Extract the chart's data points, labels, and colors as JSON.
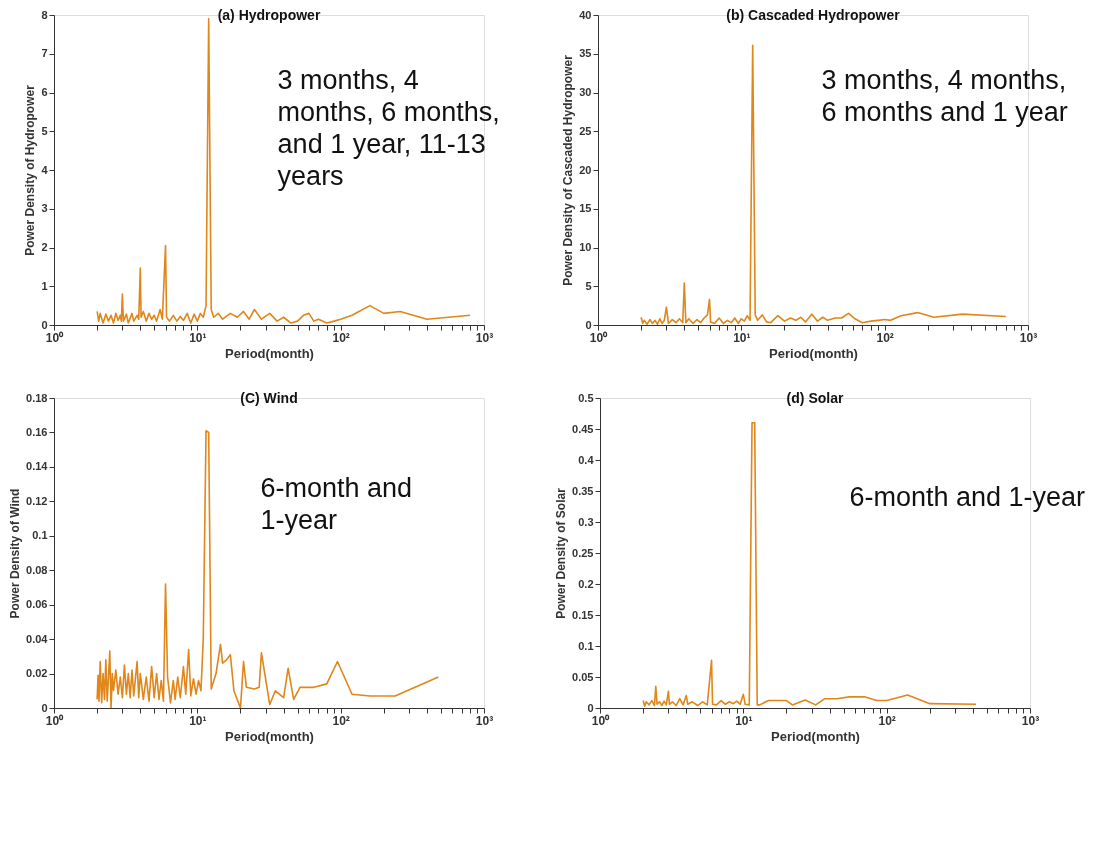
{
  "chart_data": [
    {
      "type": "line",
      "title": "(a) Hydropower",
      "xlabel": "Period(month)",
      "ylabel": "Power Density of Hydropower",
      "log": "x",
      "grid": false,
      "annotations": [
        "3 months, 4 months, 6 months, and 1 year, 11-13 years"
      ],
      "xlim": [
        1,
        1000
      ],
      "xticks": [
        {
          "value": 1,
          "label": "10⁰"
        },
        {
          "value": 2,
          "label": null
        },
        {
          "value": 3,
          "label": null
        },
        {
          "value": 4,
          "label": null
        },
        {
          "value": 5,
          "label": null
        },
        {
          "value": 6,
          "label": null
        },
        {
          "value": 7,
          "label": null
        },
        {
          "value": 8,
          "label": null
        },
        {
          "value": 9,
          "label": null
        },
        {
          "value": 10,
          "label": "10¹"
        },
        {
          "value": 20,
          "label": null
        },
        {
          "value": 30,
          "label": null
        },
        {
          "value": 40,
          "label": null
        },
        {
          "value": 50,
          "label": null
        },
        {
          "value": 60,
          "label": null
        },
        {
          "value": 70,
          "label": null
        },
        {
          "value": 80,
          "label": null
        },
        {
          "value": 90,
          "label": null
        },
        {
          "value": 100,
          "label": "10²"
        },
        {
          "value": 200,
          "label": null
        },
        {
          "value": 300,
          "label": null
        },
        {
          "value": 400,
          "label": null
        },
        {
          "value": 500,
          "label": null
        },
        {
          "value": 600,
          "label": null
        },
        {
          "value": 700,
          "label": null
        },
        {
          "value": 800,
          "label": null
        },
        {
          "value": 900,
          "label": null
        },
        {
          "value": 1000,
          "label": "10³"
        }
      ],
      "ylim": [
        0,
        8
      ],
      "yticks": [
        0,
        1,
        2,
        3,
        4,
        5,
        6,
        7,
        8
      ],
      "x": [
        2,
        2.05,
        2.1,
        2.2,
        2.3,
        2.4,
        2.5,
        2.6,
        2.7,
        2.8,
        2.9,
        2.95,
        3,
        3.05,
        3.2,
        3.3,
        3.5,
        3.6,
        3.8,
        3.9,
        4,
        4.05,
        4.2,
        4.4,
        4.6,
        4.8,
        5,
        5.2,
        5.5,
        5.7,
        6,
        6.1,
        6.4,
        6.8,
        7.2,
        7.6,
        8,
        8.5,
        9,
        9.5,
        10,
        10.5,
        11,
        11.5,
        12,
        12.5,
        13,
        14,
        15,
        17,
        19,
        21,
        23,
        25,
        28,
        32,
        36,
        40,
        45,
        50,
        55,
        60,
        65,
        70,
        80,
        90,
        100,
        120,
        160,
        200,
        260,
        400,
        800
      ],
      "series": [
        {
          "color": "#e0861a",
          "values": [
            0.35,
            0.1,
            0.3,
            0.05,
            0.28,
            0.1,
            0.25,
            0.05,
            0.3,
            0.12,
            0.25,
            0.1,
            0.8,
            0.1,
            0.28,
            0.05,
            0.3,
            0.1,
            0.25,
            0.15,
            1.47,
            0.2,
            0.35,
            0.1,
            0.3,
            0.15,
            0.25,
            0.1,
            0.4,
            0.15,
            2.05,
            0.2,
            0.1,
            0.25,
            0.1,
            0.22,
            0.12,
            0.3,
            0.05,
            0.28,
            0.1,
            0.3,
            0.2,
            0.5,
            7.9,
            0.4,
            0.2,
            0.3,
            0.15,
            0.3,
            0.2,
            0.35,
            0.15,
            0.4,
            0.15,
            0.3,
            0.1,
            0.2,
            0.05,
            0.1,
            0.25,
            0.3,
            0.1,
            0.15,
            0.05,
            0.1,
            0.15,
            0.25,
            0.5,
            0.3,
            0.35,
            0.15,
            0.25
          ]
        }
      ]
    },
    {
      "type": "line",
      "title": "(b) Cascaded Hydropower",
      "xlabel": "Period(month)",
      "ylabel": "Power Density of Cascaded Hydropower",
      "log": "x",
      "grid": false,
      "annotations": [
        "3 months, 4 months, 6 months and 1 year"
      ],
      "xlim": [
        1,
        1000
      ],
      "xticks": [
        {
          "value": 1,
          "label": "10⁰"
        },
        {
          "value": 2,
          "label": null
        },
        {
          "value": 3,
          "label": null
        },
        {
          "value": 4,
          "label": null
        },
        {
          "value": 5,
          "label": null
        },
        {
          "value": 6,
          "label": null
        },
        {
          "value": 7,
          "label": null
        },
        {
          "value": 8,
          "label": null
        },
        {
          "value": 9,
          "label": null
        },
        {
          "value": 10,
          "label": "10¹"
        },
        {
          "value": 20,
          "label": null
        },
        {
          "value": 30,
          "label": null
        },
        {
          "value": 40,
          "label": null
        },
        {
          "value": 50,
          "label": null
        },
        {
          "value": 60,
          "label": null
        },
        {
          "value": 70,
          "label": null
        },
        {
          "value": 80,
          "label": null
        },
        {
          "value": 90,
          "label": null
        },
        {
          "value": 100,
          "label": "10²"
        },
        {
          "value": 200,
          "label": null
        },
        {
          "value": 300,
          "label": null
        },
        {
          "value": 400,
          "label": null
        },
        {
          "value": 500,
          "label": null
        },
        {
          "value": 600,
          "label": null
        },
        {
          "value": 700,
          "label": null
        },
        {
          "value": 800,
          "label": null
        },
        {
          "value": 900,
          "label": null
        },
        {
          "value": 1000,
          "label": "10³"
        }
      ],
      "ylim": [
        0,
        40
      ],
      "yticks": [
        0,
        5,
        10,
        15,
        20,
        25,
        30,
        35,
        40
      ],
      "x": [
        2,
        2.05,
        2.1,
        2.2,
        2.3,
        2.4,
        2.5,
        2.6,
        2.7,
        2.8,
        2.9,
        3,
        3.1,
        3.3,
        3.5,
        3.7,
        3.9,
        4,
        4.1,
        4.3,
        4.6,
        4.9,
        5.2,
        5.5,
        5.8,
        6,
        6.1,
        6.5,
        7,
        7.5,
        8,
        8.5,
        9,
        9.5,
        10,
        10.5,
        11,
        11.5,
        12,
        12.5,
        13,
        14,
        15,
        16,
        18,
        20,
        22,
        24,
        26,
        28,
        31,
        34,
        37,
        40,
        45,
        50,
        56,
        62,
        70,
        80,
        90,
        100,
        110,
        130,
        170,
        220,
        350,
        700
      ],
      "series": [
        {
          "color": "#e0861a",
          "values": [
            1,
            0.2,
            0.6,
            0.1,
            0.7,
            0.2,
            0.6,
            0.1,
            0.8,
            0.2,
            0.6,
            2.3,
            0.2,
            0.7,
            0.3,
            0.8,
            0.3,
            5.4,
            0.3,
            0.8,
            0.2,
            0.7,
            0.3,
            0.9,
            1.3,
            3.3,
            0.4,
            0.2,
            0.9,
            0.2,
            0.6,
            0.3,
            0.9,
            0.2,
            0.8,
            0.5,
            1.2,
            0.6,
            36.1,
            1.3,
            0.6,
            1.3,
            0.4,
            0.3,
            1.2,
            0.5,
            0.9,
            0.6,
            1.0,
            0.4,
            1.4,
            0.5,
            1.0,
            0.6,
            0.9,
            0.9,
            1.5,
            0.8,
            0.3,
            0.5,
            0.6,
            0.7,
            0.6,
            1.2,
            1.6,
            1.0,
            1.4,
            1.1
          ]
        }
      ]
    },
    {
      "type": "line",
      "title": "(C) Wind",
      "xlabel": "Period(month)",
      "ylabel": "Power Density of Wind",
      "log": "x",
      "grid": false,
      "annotations": [
        "6-month and 1-year"
      ],
      "xlim": [
        1,
        1000
      ],
      "xticks": [
        {
          "value": 1,
          "label": "10⁰"
        },
        {
          "value": 2,
          "label": null
        },
        {
          "value": 3,
          "label": null
        },
        {
          "value": 4,
          "label": null
        },
        {
          "value": 5,
          "label": null
        },
        {
          "value": 6,
          "label": null
        },
        {
          "value": 7,
          "label": null
        },
        {
          "value": 8,
          "label": null
        },
        {
          "value": 9,
          "label": null
        },
        {
          "value": 10,
          "label": "10¹"
        },
        {
          "value": 20,
          "label": null
        },
        {
          "value": 30,
          "label": null
        },
        {
          "value": 40,
          "label": null
        },
        {
          "value": 50,
          "label": null
        },
        {
          "value": 60,
          "label": null
        },
        {
          "value": 70,
          "label": null
        },
        {
          "value": 80,
          "label": null
        },
        {
          "value": 90,
          "label": null
        },
        {
          "value": 100,
          "label": "10²"
        },
        {
          "value": 200,
          "label": null
        },
        {
          "value": 300,
          "label": null
        },
        {
          "value": 400,
          "label": null
        },
        {
          "value": 500,
          "label": null
        },
        {
          "value": 600,
          "label": null
        },
        {
          "value": 700,
          "label": null
        },
        {
          "value": 800,
          "label": null
        },
        {
          "value": 900,
          "label": null
        },
        {
          "value": 1000,
          "label": "10³"
        }
      ],
      "ylim": [
        0,
        0.18
      ],
      "yticks": [
        0,
        0.02,
        0.04,
        0.06,
        0.08,
        0.1,
        0.12,
        0.14,
        0.16,
        0.18
      ],
      "x": [
        2,
        2.03,
        2.06,
        2.1,
        2.15,
        2.2,
        2.25,
        2.3,
        2.35,
        2.4,
        2.45,
        2.5,
        2.55,
        2.6,
        2.7,
        2.8,
        2.9,
        3,
        3.1,
        3.2,
        3.3,
        3.4,
        3.5,
        3.6,
        3.8,
        3.9,
        4,
        4.2,
        4.4,
        4.6,
        4.8,
        5,
        5.2,
        5.4,
        5.6,
        5.8,
        6,
        6.2,
        6.5,
        6.8,
        7,
        7.3,
        7.6,
        8,
        8.3,
        8.7,
        9,
        9.4,
        9.8,
        10.2,
        10.6,
        11,
        11.5,
        12,
        12.5,
        13.5,
        14.5,
        15,
        16,
        17,
        18,
        20,
        21,
        22,
        25,
        27,
        28,
        32,
        35,
        40,
        43,
        47,
        52,
        65,
        80,
        95,
        120,
        160,
        240,
        480
      ],
      "series": [
        {
          "color": "#e0861a",
          "values": [
            0.005,
            0.019,
            0.004,
            0.027,
            0.003,
            0.02,
            0.005,
            0.028,
            0.004,
            0.018,
            0.033,
            0.0,
            0.02,
            0.01,
            0.022,
            0.008,
            0.018,
            0.006,
            0.025,
            0.008,
            0.02,
            0.006,
            0.022,
            0.007,
            0.027,
            0.006,
            0.02,
            0.005,
            0.018,
            0.004,
            0.024,
            0.006,
            0.02,
            0.005,
            0.016,
            0.004,
            0.072,
            0.018,
            0.003,
            0.016,
            0.005,
            0.018,
            0.006,
            0.024,
            0.008,
            0.034,
            0.007,
            0.017,
            0.008,
            0.016,
            0.01,
            0.04,
            0.161,
            0.16,
            0.011,
            0.02,
            0.037,
            0.026,
            0.028,
            0.031,
            0.01,
            0.0,
            0.027,
            0.012,
            0.011,
            0.012,
            0.032,
            0.002,
            0.01,
            0.006,
            0.023,
            0.005,
            0.012,
            0.012,
            0.014,
            0.027,
            0.008,
            0.007,
            0.007,
            0.018
          ]
        }
      ]
    },
    {
      "type": "line",
      "title": "(d) Solar",
      "xlabel": "Period(month)",
      "ylabel": "Power Density of Solar",
      "log": "x",
      "grid": false,
      "annotations": [
        "6-month and 1-year"
      ],
      "xlim": [
        1,
        1000
      ],
      "xticks": [
        {
          "value": 1,
          "label": "10⁰"
        },
        {
          "value": 2,
          "label": null
        },
        {
          "value": 3,
          "label": null
        },
        {
          "value": 4,
          "label": null
        },
        {
          "value": 5,
          "label": null
        },
        {
          "value": 6,
          "label": null
        },
        {
          "value": 7,
          "label": null
        },
        {
          "value": 8,
          "label": null
        },
        {
          "value": 9,
          "label": null
        },
        {
          "value": 10,
          "label": "10¹"
        },
        {
          "value": 20,
          "label": null
        },
        {
          "value": 30,
          "label": null
        },
        {
          "value": 40,
          "label": null
        },
        {
          "value": 50,
          "label": null
        },
        {
          "value": 60,
          "label": null
        },
        {
          "value": 70,
          "label": null
        },
        {
          "value": 80,
          "label": null
        },
        {
          "value": 90,
          "label": null
        },
        {
          "value": 100,
          "label": "10²"
        },
        {
          "value": 200,
          "label": null
        },
        {
          "value": 300,
          "label": null
        },
        {
          "value": 400,
          "label": null
        },
        {
          "value": 500,
          "label": null
        },
        {
          "value": 600,
          "label": null
        },
        {
          "value": 700,
          "label": null
        },
        {
          "value": 800,
          "label": null
        },
        {
          "value": 900,
          "label": null
        },
        {
          "value": 1000,
          "label": "10³"
        }
      ],
      "ylim": [
        0,
        0.5
      ],
      "yticks": [
        0,
        0.05,
        0.1,
        0.15,
        0.2,
        0.25,
        0.3,
        0.35,
        0.4,
        0.45,
        0.5
      ],
      "x": [
        2,
        2.05,
        2.1,
        2.2,
        2.3,
        2.4,
        2.45,
        2.5,
        2.6,
        2.7,
        2.8,
        2.9,
        3,
        3.05,
        3.2,
        3.4,
        3.6,
        3.8,
        4,
        4.1,
        4.4,
        4.8,
        5.2,
        5.6,
        6,
        6.1,
        6.5,
        7,
        7.5,
        8,
        8.5,
        9,
        9.5,
        10,
        10.3,
        11,
        11.5,
        12,
        12.5,
        13,
        15,
        20,
        22,
        27,
        32,
        37,
        45,
        55,
        70,
        85,
        100,
        140,
        200,
        420
      ],
      "series": [
        {
          "color": "#e0861a",
          "values": [
            0.012,
            0.003,
            0.01,
            0.005,
            0.012,
            0.004,
            0.035,
            0.006,
            0.01,
            0.004,
            0.011,
            0.005,
            0.027,
            0.006,
            0.01,
            0.004,
            0.015,
            0.005,
            0.02,
            0.006,
            0.01,
            0.004,
            0.01,
            0.005,
            0.077,
            0.006,
            0.005,
            0.012,
            0.006,
            0.01,
            0.007,
            0.011,
            0.006,
            0.022,
            0.006,
            0.005,
            0.46,
            0.46,
            0.005,
            0.005,
            0.012,
            0.012,
            0.005,
            0.013,
            0.005,
            0.015,
            0.015,
            0.018,
            0.018,
            0.012,
            0.012,
            0.021,
            0.007,
            0.006
          ]
        }
      ]
    }
  ]
}
